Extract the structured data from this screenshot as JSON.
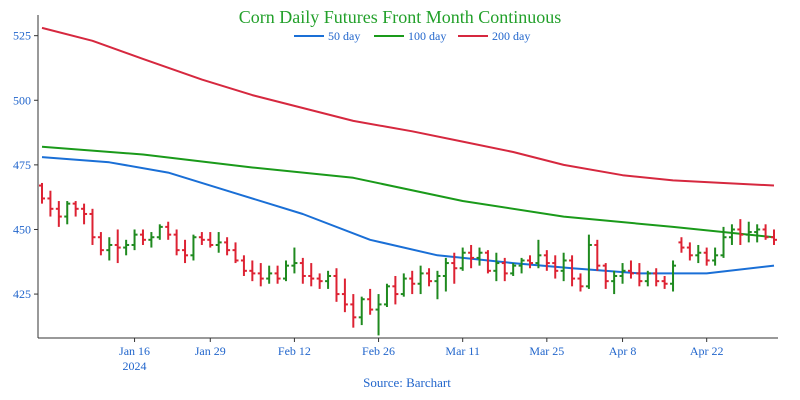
{
  "chart_data": {
    "type": "ohlc",
    "title": "Corn Daily Futures Front Month Continuous",
    "source": "Source: Barchart",
    "ylim": [
      408,
      533
    ],
    "y_ticks": [
      425,
      450,
      475,
      500,
      525
    ],
    "grid": false,
    "legend_position": "top",
    "colors": {
      "title": "#22a02a",
      "text": "#2266cc",
      "up": "#1f8a1f",
      "down": "#dd2233",
      "axis": "#333333",
      "ma50": "#1a6fd6",
      "ma100": "#1a9a1a",
      "ma200": "#d6283f"
    },
    "x_ticks": [
      {
        "x": 11,
        "label": "Jan 16",
        "sublabel": "2024"
      },
      {
        "x": 20,
        "label": "Jan 29",
        "sublabel": ""
      },
      {
        "x": 30,
        "label": "Feb 12",
        "sublabel": ""
      },
      {
        "x": 40,
        "label": "Feb 26",
        "sublabel": ""
      },
      {
        "x": 50,
        "label": "Mar 11",
        "sublabel": ""
      },
      {
        "x": 60,
        "label": "Mar 25",
        "sublabel": ""
      },
      {
        "x": 69,
        "label": "Apr 8",
        "sublabel": ""
      },
      {
        "x": 79,
        "label": "Apr 22",
        "sublabel": ""
      }
    ],
    "x_range": [
      0,
      87
    ],
    "ohlc": [
      [
        467,
        468,
        460,
        462
      ],
      [
        462,
        465,
        455,
        458
      ],
      [
        458,
        461,
        451,
        455
      ],
      [
        455,
        461,
        452,
        460
      ],
      [
        460,
        461,
        455,
        458
      ],
      [
        458,
        460,
        452,
        456
      ],
      [
        456,
        458,
        444,
        447
      ],
      [
        447,
        449,
        440,
        442
      ],
      [
        442,
        447,
        438,
        444
      ],
      [
        444,
        450,
        437,
        443
      ],
      [
        443,
        446,
        440,
        444
      ],
      [
        444,
        450,
        442,
        448
      ],
      [
        448,
        450,
        444,
        446
      ],
      [
        446,
        449,
        443,
        447
      ],
      [
        447,
        452,
        446,
        451
      ],
      [
        451,
        453,
        446,
        448
      ],
      [
        448,
        450,
        440,
        442
      ],
      [
        442,
        446,
        437,
        440
      ],
      [
        440,
        448,
        438,
        447
      ],
      [
        447,
        449,
        444,
        446
      ],
      [
        446,
        449,
        443,
        444
      ],
      [
        444,
        449,
        441,
        445
      ],
      [
        445,
        447,
        440,
        442
      ],
      [
        442,
        445,
        437,
        438
      ],
      [
        438,
        440,
        432,
        434
      ],
      [
        434,
        438,
        430,
        433
      ],
      [
        433,
        437,
        428,
        431
      ],
      [
        431,
        436,
        429,
        433
      ],
      [
        433,
        436,
        429,
        431
      ],
      [
        431,
        438,
        430,
        436
      ],
      [
        436,
        443,
        433,
        437
      ],
      [
        437,
        439,
        429,
        432
      ],
      [
        432,
        437,
        428,
        431
      ],
      [
        431,
        433,
        427,
        430
      ],
      [
        430,
        434,
        427,
        432
      ],
      [
        432,
        435,
        422,
        425
      ],
      [
        425,
        431,
        418,
        421
      ],
      [
        421,
        425,
        412,
        416
      ],
      [
        416,
        424,
        413,
        423
      ],
      [
        423,
        427,
        417,
        419
      ],
      [
        419,
        425,
        409,
        421
      ],
      [
        421,
        429,
        420,
        428
      ],
      [
        428,
        432,
        421,
        425
      ],
      [
        425,
        433,
        424,
        431
      ],
      [
        431,
        434,
        425,
        429
      ],
      [
        429,
        436,
        425,
        433
      ],
      [
        433,
        435,
        428,
        430
      ],
      [
        430,
        434,
        423,
        432
      ],
      [
        432,
        439,
        426,
        437
      ],
      [
        437,
        441,
        429,
        435
      ],
      [
        435,
        443,
        434,
        441
      ],
      [
        441,
        444,
        435,
        439
      ],
      [
        439,
        443,
        436,
        441
      ],
      [
        441,
        442,
        433,
        434
      ],
      [
        434,
        441,
        430,
        437
      ],
      [
        437,
        439,
        430,
        433
      ],
      [
        433,
        437,
        432,
        436
      ],
      [
        436,
        439,
        433,
        438
      ],
      [
        438,
        440,
        435,
        437
      ],
      [
        437,
        446,
        435,
        440
      ],
      [
        440,
        442,
        434,
        437
      ],
      [
        437,
        440,
        431,
        434
      ],
      [
        434,
        441,
        430,
        438
      ],
      [
        438,
        440,
        428,
        431
      ],
      [
        431,
        433,
        426,
        428
      ],
      [
        428,
        448,
        427,
        444
      ],
      [
        444,
        446,
        434,
        436
      ],
      [
        436,
        437,
        427,
        430
      ],
      [
        430,
        434,
        425,
        432
      ],
      [
        432,
        437,
        429,
        434
      ],
      [
        434,
        438,
        431,
        433
      ],
      [
        433,
        437,
        428,
        430
      ],
      [
        430,
        434,
        428,
        433
      ],
      [
        433,
        435,
        428,
        430
      ],
      [
        430,
        432,
        427,
        429
      ],
      [
        429,
        438,
        426,
        436
      ],
      [
        445,
        447,
        441,
        443
      ],
      [
        443,
        445,
        438,
        440
      ],
      [
        440,
        444,
        437,
        441
      ],
      [
        441,
        443,
        436,
        438
      ],
      [
        438,
        443,
        436,
        440
      ],
      [
        440,
        451,
        439,
        447
      ],
      [
        447,
        452,
        444,
        450
      ],
      [
        450,
        454,
        444,
        448
      ],
      [
        448,
        453,
        445,
        449
      ],
      [
        449,
        452,
        445,
        450
      ],
      [
        450,
        452,
        446,
        447
      ],
      [
        447,
        450,
        444,
        446
      ]
    ],
    "series": [
      {
        "name": "50 day",
        "x": [
          0,
          8,
          15,
          23,
          31,
          39,
          47,
          56,
          63,
          71,
          79,
          87
        ],
        "values": [
          478,
          476,
          472,
          464,
          456,
          446,
          440,
          437,
          435,
          433,
          433,
          436
        ]
      },
      {
        "name": "100 day",
        "x": [
          0,
          12,
          25,
          37,
          50,
          62,
          75,
          87
        ],
        "values": [
          482,
          479,
          474,
          470,
          461,
          455,
          451,
          447
        ]
      },
      {
        "name": "200 day",
        "x": [
          0,
          6,
          12,
          19,
          25,
          31,
          37,
          44,
          50,
          56,
          62,
          69,
          75,
          81,
          87
        ],
        "values": [
          528,
          523,
          516,
          508,
          502,
          497,
          492,
          488,
          484,
          480,
          475,
          471,
          469,
          468,
          467
        ]
      }
    ]
  }
}
